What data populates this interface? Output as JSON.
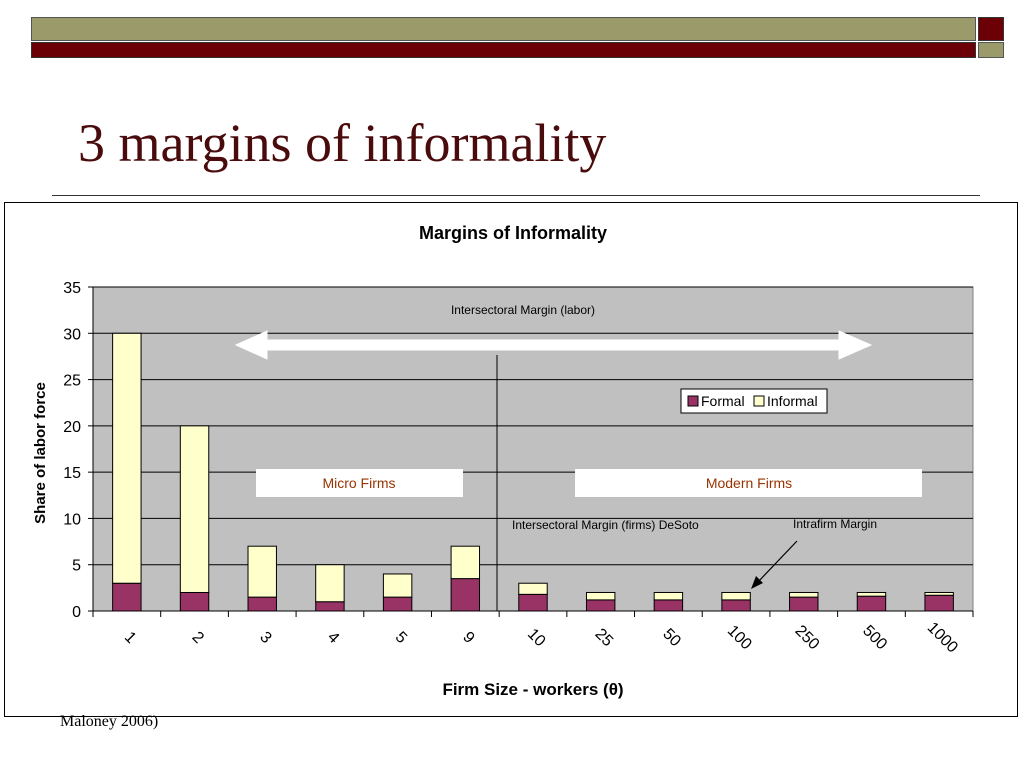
{
  "slide": {
    "title": "3 margins of informality",
    "source_note": "Maloney 2006)",
    "colors": {
      "olive": "#9b9a6b",
      "dark_red": "#6b0006",
      "title": "#4a0b0d"
    }
  },
  "chart_data": {
    "type": "bar",
    "stacked": true,
    "title": "Margins of Informality",
    "xlabel": "Firm Size  - workers (θ)",
    "ylabel": "Share of labor force",
    "ylim": [
      0,
      35
    ],
    "yticks": [
      "0",
      "5",
      "10",
      "15",
      "20",
      "25",
      "30",
      "35"
    ],
    "categories": [
      "1",
      "2",
      "3",
      "4",
      "5",
      "9",
      "10",
      "25",
      "50",
      "100",
      "250",
      "500",
      "1000"
    ],
    "series": [
      {
        "name": "Formal",
        "color": "#993366",
        "values": [
          3,
          2,
          1.5,
          1,
          1.5,
          3.5,
          1.8,
          1.2,
          1.2,
          1.2,
          1.5,
          1.6,
          1.7
        ]
      },
      {
        "name": "Informal",
        "color": "#ffffcc",
        "values": [
          27,
          18,
          5.5,
          4,
          2.5,
          3.5,
          1.2,
          0.8,
          0.8,
          0.8,
          0.5,
          0.4,
          0.3
        ]
      }
    ],
    "grid": true,
    "plot_background": "#c0c0c0",
    "legend_position": "right",
    "annotations": {
      "intersectoral_labor": "Intersectoral Margin (labor)",
      "intersectoral_firms": "Intersectoral Margin (firms) DeSoto",
      "intrafirm": "Intrafirm Margin",
      "micro_firms": "Micro Firms",
      "modern_firms": "Modern Firms",
      "box_text_color": "#993300"
    }
  }
}
